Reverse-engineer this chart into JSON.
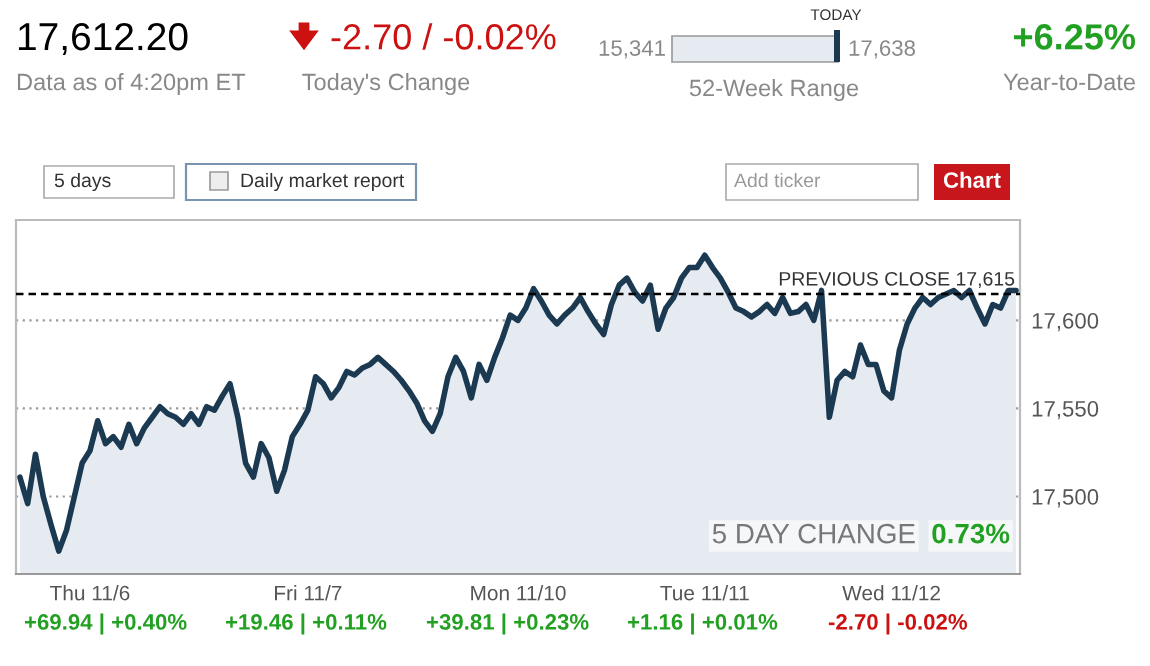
{
  "chart_data": {
    "type": "area",
    "title": "17,612.20",
    "annotations": [
      "Data as of 4:20pm ET",
      "-2.70 / -0.02%",
      "Today's Change",
      "15,341",
      "17,638",
      "TODAY",
      "52-Week Range",
      "+6.25%",
      "Year-to-Date",
      "5 days",
      "Daily market report",
      "Add ticker",
      "Chart",
      "5 DAY CHANGE",
      "0.73%",
      "+69.94 | +0.40%",
      "+19.46 | +0.11%",
      "+39.81 | +0.23%",
      "+1.16 | +0.01%",
      "-2.70 | -0.02%"
    ],
    "categories": [
      null,
      null,
      null,
      null,
      null,
      null,
      null,
      null,
      null,
      "Thu 11/6",
      null,
      null,
      null,
      null,
      null,
      null,
      null,
      null,
      null,
      null,
      null,
      null,
      null,
      null,
      null,
      null,
      null,
      null,
      null,
      null,
      null,
      null,
      null,
      null,
      null,
      null,
      null,
      "Fri 11/7",
      null,
      null,
      null,
      null,
      null,
      null,
      null,
      null,
      null,
      null,
      null,
      null,
      null,
      null,
      null,
      null,
      null,
      null,
      null,
      null,
      null,
      null,
      null,
      null,
      null,
      null,
      "Mon 11/10",
      null,
      null,
      null,
      null,
      null,
      null,
      null,
      null,
      null,
      null,
      null,
      null,
      null,
      null,
      null,
      null,
      null,
      null,
      null,
      null,
      null,
      null,
      null,
      "Tue 11/11",
      null,
      null,
      null,
      null,
      null,
      null,
      null,
      null,
      null,
      null,
      null,
      null,
      null,
      null,
      null,
      null,
      null,
      null,
      null,
      null,
      null,
      null,
      null,
      "Wed 11/12",
      null,
      null,
      null,
      null,
      null,
      null,
      null,
      null,
      null,
      null,
      null,
      null,
      null,
      null,
      null,
      null
    ],
    "series": [
      {
        "color": "#1b3a52",
        "values": [
          17511,
          17496,
          17524,
          17500,
          17484,
          17469,
          17481,
          17500,
          17519,
          17526,
          17543,
          17530,
          17534,
          17528,
          17541,
          17530,
          17539,
          17545,
          17551,
          17547,
          17545,
          17541,
          17547,
          17541,
          17551,
          17549,
          17557,
          17564,
          17545,
          17519,
          17511,
          17530,
          17522,
          17503,
          17515,
          17534,
          17541,
          17549,
          17568,
          17564,
          17556,
          17562,
          17571,
          17569,
          17573,
          17575,
          17579,
          17575,
          17571,
          17566,
          17560,
          17553,
          17543,
          17537,
          17547,
          17568,
          17579,
          17571,
          17556,
          17575,
          17566,
          17579,
          17590,
          17603,
          17600,
          17607,
          17618,
          17611,
          17603,
          17598,
          17603,
          17607,
          17613,
          17605,
          17598,
          17592,
          17609,
          17620,
          17624,
          17616,
          17611,
          17620,
          17595,
          17607,
          17613,
          17624,
          17630,
          17630,
          17637,
          17630,
          17624,
          17616,
          17607,
          17605,
          17602,
          17605,
          17609,
          17604,
          17613,
          17604,
          17605,
          17609,
          17600,
          17617,
          17545,
          17566,
          17571,
          17568,
          17586,
          17575,
          17575,
          17560,
          17556,
          17583,
          17598,
          17607,
          17613,
          17609,
          17613,
          17615,
          17617,
          17613,
          17617,
          17607,
          17598,
          17609,
          17607,
          17617,
          17617
        ]
      }
    ],
    "ylim": [
      17456,
      17657
    ],
    "yticks": [
      {
        "value": 17500,
        "label": "17,500"
      },
      {
        "value": 17550,
        "label": "17,550"
      },
      {
        "value": 17600,
        "label": "17,600"
      }
    ],
    "ref_lines": [
      {
        "axis": "y",
        "value": 17615,
        "label": "PREVIOUS CLOSE 17,615",
        "color": "#000000",
        "line_style": "dashed"
      }
    ],
    "grid": "y",
    "legend": false
  }
}
